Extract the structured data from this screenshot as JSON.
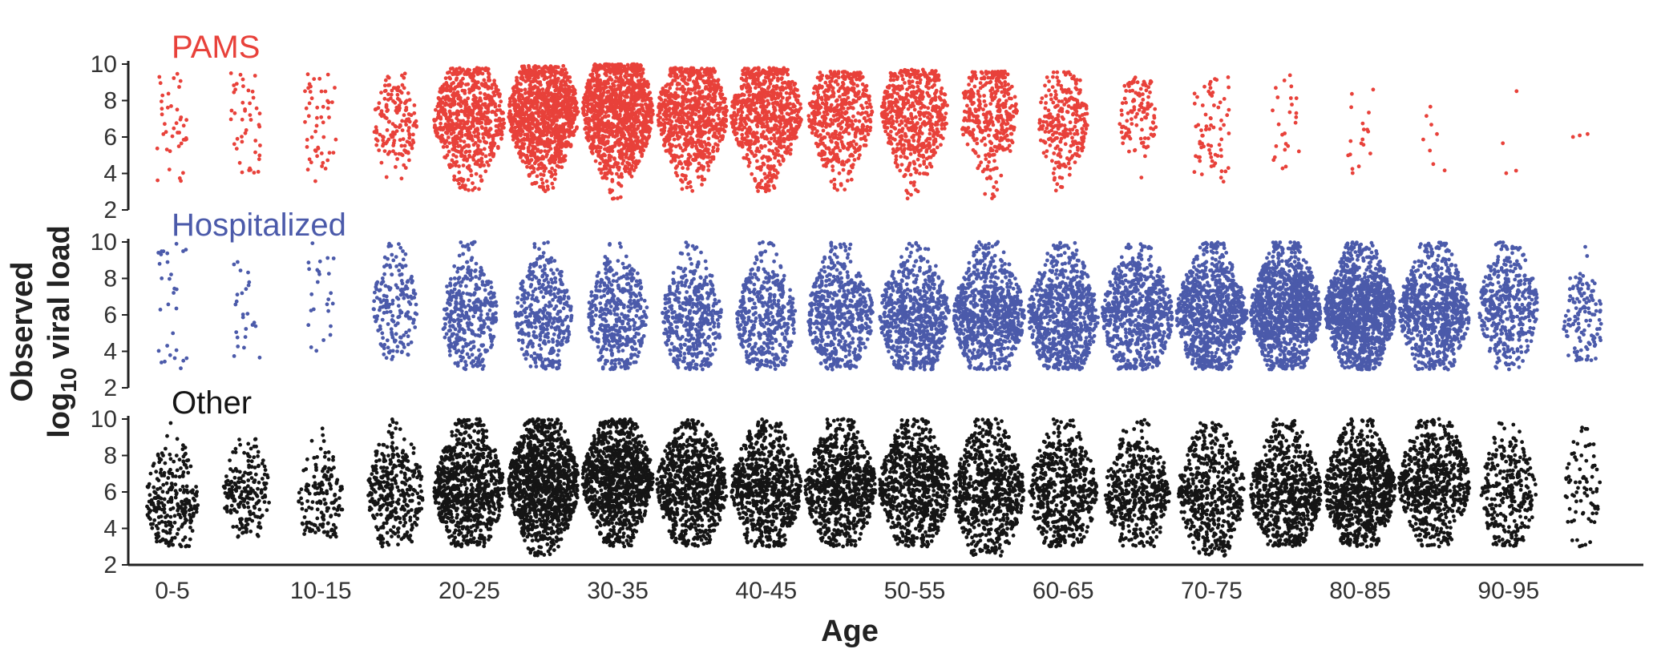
{
  "chart_data": {
    "type": "scatter",
    "subtype": "beeswarm",
    "xlabel": "Age",
    "ylabel_line1": "Observed",
    "ylabel_line2_prefix": "log",
    "ylabel_line2_subscript": "10",
    "ylabel_line2_suffix": " viral load",
    "ylim": [
      2,
      10
    ],
    "y_ticks": [
      "10",
      "8",
      "6",
      "4",
      "2"
    ],
    "x_tick_labels": [
      "0-5",
      "10-15",
      "20-25",
      "30-35",
      "40-45",
      "50-55",
      "60-65",
      "70-75",
      "80-85",
      "90-95"
    ],
    "age_groups": [
      "0-5",
      "5-10",
      "10-15",
      "15-20",
      "20-25",
      "25-30",
      "30-35",
      "35-40",
      "40-45",
      "45-50",
      "50-55",
      "55-60",
      "60-65",
      "65-70",
      "70-75",
      "75-80",
      "80-85",
      "85-90",
      "90-95",
      "95-100"
    ],
    "grid": false,
    "legend": "none",
    "series": [
      {
        "name": "PAMS",
        "color": "#e8413a",
        "approx_point_counts": [
          40,
          45,
          50,
          160,
          700,
          1100,
          1200,
          800,
          750,
          520,
          560,
          360,
          260,
          110,
          70,
          25,
          18,
          8,
          4,
          3
        ],
        "approx_median": [
          6.5,
          6.5,
          6.5,
          6.8,
          7.0,
          7.3,
          7.4,
          7.2,
          7.3,
          7.2,
          7.4,
          7.2,
          6.9,
          7.2,
          6.5,
          6.5,
          6.5,
          6.0,
          7.0,
          6.0
        ],
        "approx_range": [
          [
            3.5,
            9.5
          ],
          [
            3.5,
            9.5
          ],
          [
            3.5,
            9.5
          ],
          [
            3.5,
            9.5
          ],
          [
            3,
            9.8
          ],
          [
            3,
            9.9
          ],
          [
            2.5,
            10
          ],
          [
            3,
            9.8
          ],
          [
            3,
            9.8
          ],
          [
            3,
            9.6
          ],
          [
            2.5,
            9.7
          ],
          [
            2.5,
            9.6
          ],
          [
            3,
            9.6
          ],
          [
            3.5,
            9.3
          ],
          [
            3.5,
            9.3
          ],
          [
            3.5,
            9.7
          ],
          [
            3.5,
            8.7
          ],
          [
            4,
            8.5
          ],
          [
            4,
            9
          ],
          [
            5,
            6.5
          ]
        ]
      },
      {
        "name": "Hospitalized",
        "color": "#4b5aaa",
        "approx_point_counts": [
          30,
          25,
          25,
          180,
          360,
          380,
          430,
          440,
          420,
          560,
          700,
          800,
          760,
          700,
          900,
          1100,
          1250,
          800,
          420,
          130
        ],
        "approx_median": [
          5.0,
          6.0,
          6.0,
          6.3,
          6.0,
          6.0,
          6.0,
          5.8,
          5.8,
          6.0,
          6.0,
          6.0,
          6.0,
          6.0,
          6.0,
          6.2,
          6.2,
          6.2,
          6.4,
          5.8
        ],
        "approx_range": [
          [
            3,
            10
          ],
          [
            3.5,
            9
          ],
          [
            4,
            10
          ],
          [
            3.5,
            10
          ],
          [
            3,
            10
          ],
          [
            3,
            10
          ],
          [
            3,
            10
          ],
          [
            3,
            10
          ],
          [
            3,
            10
          ],
          [
            3,
            10
          ],
          [
            3,
            10
          ],
          [
            3,
            10
          ],
          [
            3,
            10
          ],
          [
            3,
            10
          ],
          [
            3,
            10
          ],
          [
            3,
            10
          ],
          [
            3,
            10
          ],
          [
            3,
            10
          ],
          [
            3,
            10
          ],
          [
            3.5,
            10
          ]
        ]
      },
      {
        "name": "Other",
        "color": "#151515",
        "approx_point_counts": [
          260,
          200,
          160,
          340,
          800,
          1100,
          1050,
          760,
          720,
          760,
          760,
          700,
          560,
          480,
          520,
          700,
          860,
          650,
          300,
          80
        ],
        "approx_median": [
          5.5,
          6.0,
          5.5,
          6.0,
          6.2,
          6.5,
          6.7,
          6.3,
          6.2,
          6.3,
          6.3,
          6.0,
          6.0,
          6.0,
          6.0,
          6.0,
          6.2,
          6.5,
          6.0,
          6.0
        ],
        "approx_range": [
          [
            3,
            10
          ],
          [
            3.5,
            9
          ],
          [
            3.5,
            10
          ],
          [
            3,
            10
          ],
          [
            3,
            10
          ],
          [
            2.5,
            10
          ],
          [
            3,
            10
          ],
          [
            3,
            10
          ],
          [
            3,
            10
          ],
          [
            3,
            10
          ],
          [
            3,
            10
          ],
          [
            2.5,
            10
          ],
          [
            3,
            10
          ],
          [
            3,
            10
          ],
          [
            2.5,
            10
          ],
          [
            3,
            10
          ],
          [
            3,
            10
          ],
          [
            3,
            10
          ],
          [
            3,
            10
          ],
          [
            3,
            10
          ]
        ]
      }
    ]
  }
}
